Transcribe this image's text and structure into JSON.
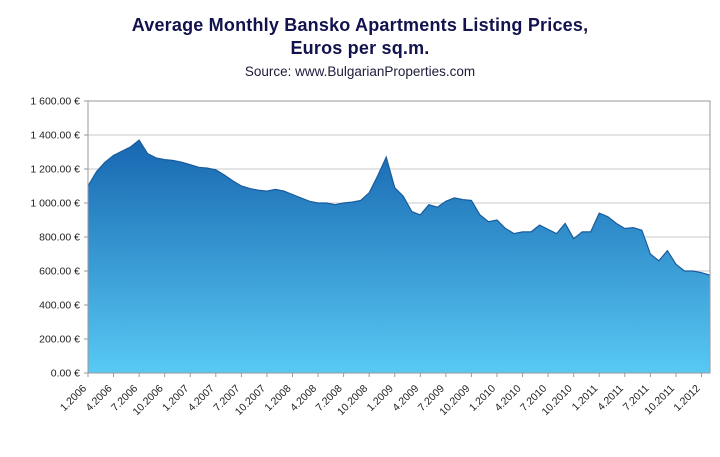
{
  "page": {
    "title_line1": "Average Monthly Bansko Apartments Listing Prices,",
    "title_line2": "Euros per sq.m.",
    "subtitle": "Source: www.BulgarianProperties.com"
  },
  "chart_data": {
    "type": "area",
    "title": "Average Monthly Bansko Apartments Listing Prices, Euros per sq.m.",
    "subtitle": "Source: www.BulgarianProperties.com",
    "xlabel": "",
    "ylabel": "",
    "ylim": [
      0,
      1600
    ],
    "y_tick_step": 200,
    "y_tick_labels": [
      "0.00 €",
      "200.00 €",
      "400.00 €",
      "600.00 €",
      "800.00 €",
      "1 000.00 €",
      "1 200.00 €",
      "1 400.00 €",
      "1 600.00 €"
    ],
    "x_tick_every": 3,
    "grid": true,
    "legend": "none",
    "x": [
      "1.2006",
      "2.2006",
      "3.2006",
      "4.2006",
      "5.2006",
      "6.2006",
      "7.2006",
      "8.2006",
      "9.2006",
      "10.2006",
      "11.2006",
      "12.2006",
      "1.2007",
      "2.2007",
      "3.2007",
      "4.2007",
      "5.2007",
      "6.2007",
      "7.2007",
      "8.2007",
      "9.2007",
      "10.2007",
      "11.2007",
      "12.2007",
      "1.2008",
      "2.2008",
      "3.2008",
      "4.2008",
      "5.2008",
      "6.2008",
      "7.2008",
      "8.2008",
      "9.2008",
      "10.2008",
      "11.2008",
      "12.2008",
      "1.2009",
      "2.2009",
      "3.2009",
      "4.2009",
      "5.2009",
      "6.2009",
      "7.2009",
      "8.2009",
      "9.2009",
      "10.2009",
      "11.2009",
      "12.2009",
      "1.2010",
      "2.2010",
      "3.2010",
      "4.2010",
      "5.2010",
      "6.2010",
      "7.2010",
      "8.2010",
      "9.2010",
      "10.2010",
      "11.2010",
      "12.2010",
      "1.2011",
      "2.2011",
      "3.2011",
      "4.2011",
      "5.2011",
      "6.2011",
      "7.2011",
      "8.2011",
      "9.2011",
      "10.2011",
      "11.2011",
      "12.2011",
      "1.2012",
      "2.2012"
    ],
    "values": [
      1100,
      1185,
      1240,
      1280,
      1305,
      1330,
      1370,
      1290,
      1265,
      1255,
      1250,
      1240,
      1225,
      1210,
      1205,
      1195,
      1165,
      1130,
      1100,
      1085,
      1075,
      1070,
      1080,
      1070,
      1050,
      1030,
      1010,
      1000,
      1000,
      990,
      1000,
      1005,
      1015,
      1060,
      1160,
      1270,
      1090,
      1040,
      950,
      930,
      990,
      975,
      1010,
      1030,
      1020,
      1015,
      930,
      890,
      900,
      850,
      820,
      830,
      830,
      870,
      845,
      820,
      880,
      790,
      830,
      830,
      940,
      920,
      880,
      850,
      855,
      840,
      700,
      660,
      720,
      640,
      600,
      600,
      590,
      575
    ],
    "colors": {
      "area_top": "#1767b0",
      "area_bottom": "#58c9f4",
      "line": "#185c9e",
      "grid": "#c9c9c9",
      "plot_border": "#9a9a9a",
      "axis_text": "#1f1f1f"
    }
  }
}
